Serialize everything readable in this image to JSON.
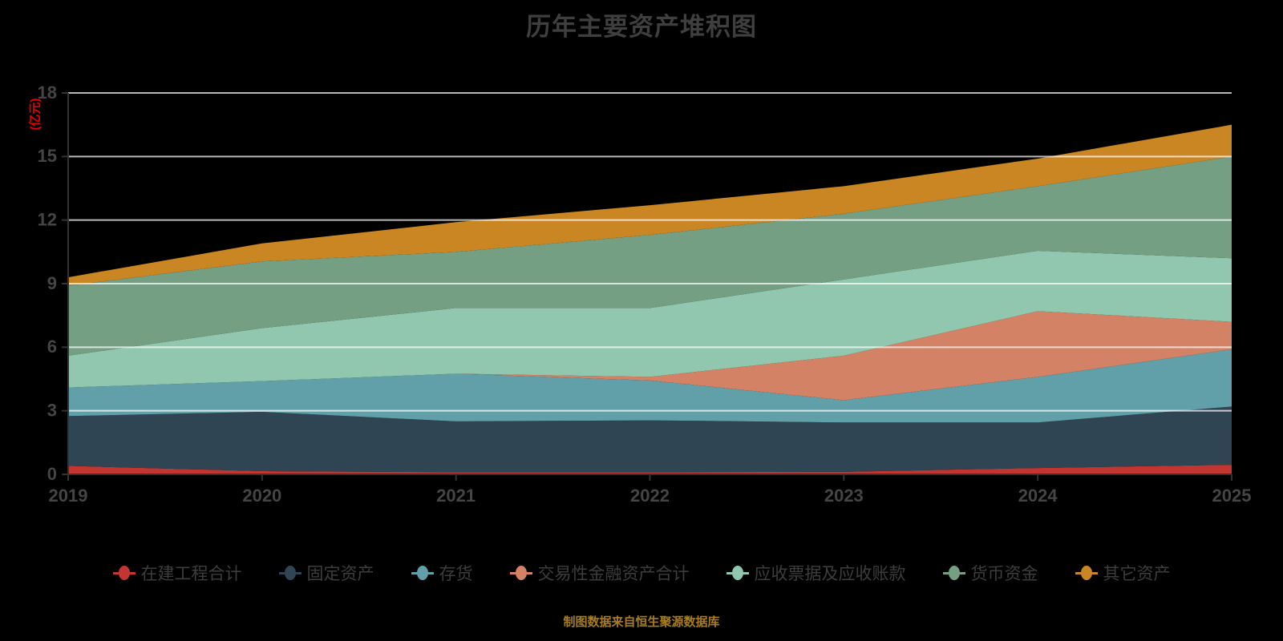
{
  "title": "历年主要资产堆积图",
  "y_axis_unit": "(亿元)",
  "footer": "制图数据来自恒生聚源数据库",
  "axis_colors": {
    "axis_line": "#333333",
    "tick_label": "#454545",
    "grid_line": "#cccccc",
    "unit_label": "#e60000"
  },
  "chart_data": {
    "type": "area",
    "stacked": true,
    "title": "历年主要资产堆积图",
    "ylabel": "(亿元)",
    "x": [
      2019,
      2020,
      2021,
      2022,
      2023,
      2024,
      2025
    ],
    "ylim": [
      0,
      18
    ],
    "yticks": [
      0,
      3,
      6,
      9,
      12,
      15,
      18
    ],
    "grid": "horizontal",
    "legend_position": "bottom",
    "series": [
      {
        "name": "在建工程合计",
        "color": "#c23531",
        "values": [
          0.4,
          0.15,
          0.1,
          0.1,
          0.12,
          0.3,
          0.45
        ]
      },
      {
        "name": "固定资产",
        "color": "#2f4554",
        "values": [
          2.35,
          2.8,
          2.4,
          2.45,
          2.33,
          2.15,
          2.75
        ]
      },
      {
        "name": "存货",
        "color": "#61a0a8",
        "values": [
          1.35,
          1.45,
          2.25,
          1.88,
          1.05,
          2.15,
          2.7
        ]
      },
      {
        "name": "交易性金融资产合计",
        "color": "#d48265",
        "values": [
          0.0,
          0.0,
          0.0,
          0.17,
          2.1,
          3.1,
          1.3
        ]
      },
      {
        "name": "应收票据及应收账款",
        "color": "#91c7ae",
        "values": [
          1.5,
          2.5,
          3.1,
          3.25,
          3.6,
          2.85,
          3.0
        ]
      },
      {
        "name": "货币资金",
        "color": "#749f83",
        "values": [
          3.3,
          3.15,
          2.65,
          3.45,
          3.1,
          3.05,
          4.8
        ]
      },
      {
        "name": "其它资产",
        "color": "#ca8622",
        "values": [
          0.4,
          0.85,
          1.4,
          1.4,
          1.3,
          1.3,
          1.5
        ]
      }
    ],
    "stack_totals": [
      9.3,
      10.9,
      11.9,
      12.7,
      13.6,
      14.9,
      16.5
    ]
  }
}
